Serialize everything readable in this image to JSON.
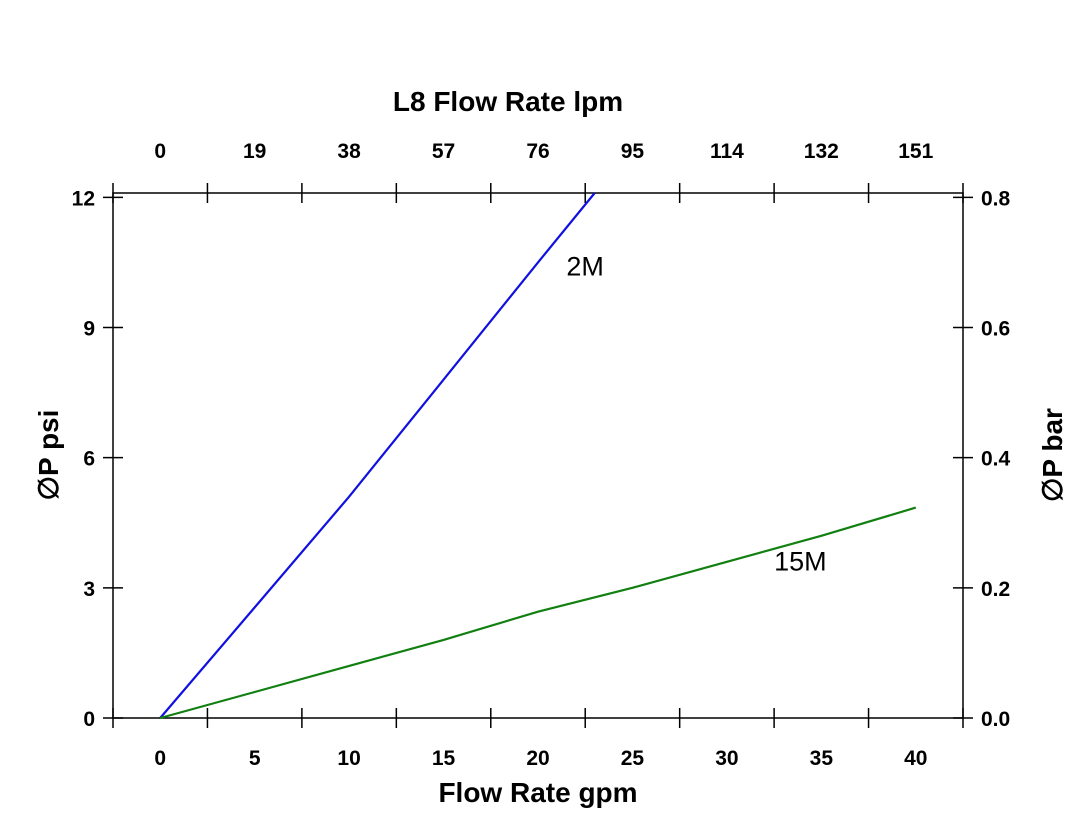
{
  "chart_data": {
    "type": "line",
    "title": "L8  Flow Rate lpm",
    "xlabel": "Flow Rate gpm",
    "ylabel": "∅P psi",
    "y2label": "∅P bar",
    "xlim": [
      -2.5,
      42.5
    ],
    "ylim": [
      0,
      12.1
    ],
    "grid": false,
    "x_ticks": [
      0,
      5,
      10,
      15,
      20,
      25,
      30,
      35,
      40
    ],
    "x_tick_labels": [
      "0",
      "5",
      "10",
      "15",
      "20",
      "25",
      "30",
      "35",
      "40"
    ],
    "top_tick_labels": [
      "0",
      "19",
      "38",
      "57",
      "76",
      "95",
      "114",
      "132",
      "151"
    ],
    "y_ticks": [
      0,
      3,
      6,
      9,
      12
    ],
    "y_tick_labels": [
      "0",
      "3",
      "6",
      "9",
      "12"
    ],
    "y2_ticks": [
      0.0,
      0.2,
      0.4,
      0.6,
      0.8
    ],
    "y2_tick_labels": [
      "0.0",
      "0.2",
      "0.4",
      "0.6",
      "0.8"
    ],
    "series": [
      {
        "name": "2M",
        "color": "#1010e0",
        "x": [
          0,
          5,
          10,
          15,
          20,
          23
        ],
        "y": [
          0,
          2.55,
          5.1,
          7.8,
          10.5,
          12.1
        ],
        "label_at": [
          21.5,
          10.2
        ]
      },
      {
        "name": "15M",
        "color": "#118011",
        "x": [
          0,
          5,
          10,
          15,
          20,
          25,
          30,
          35,
          40
        ],
        "y": [
          0,
          0.6,
          1.2,
          1.8,
          2.45,
          3.0,
          3.6,
          4.2,
          4.85
        ],
        "label_at": [
          32.5,
          3.4
        ]
      }
    ]
  }
}
